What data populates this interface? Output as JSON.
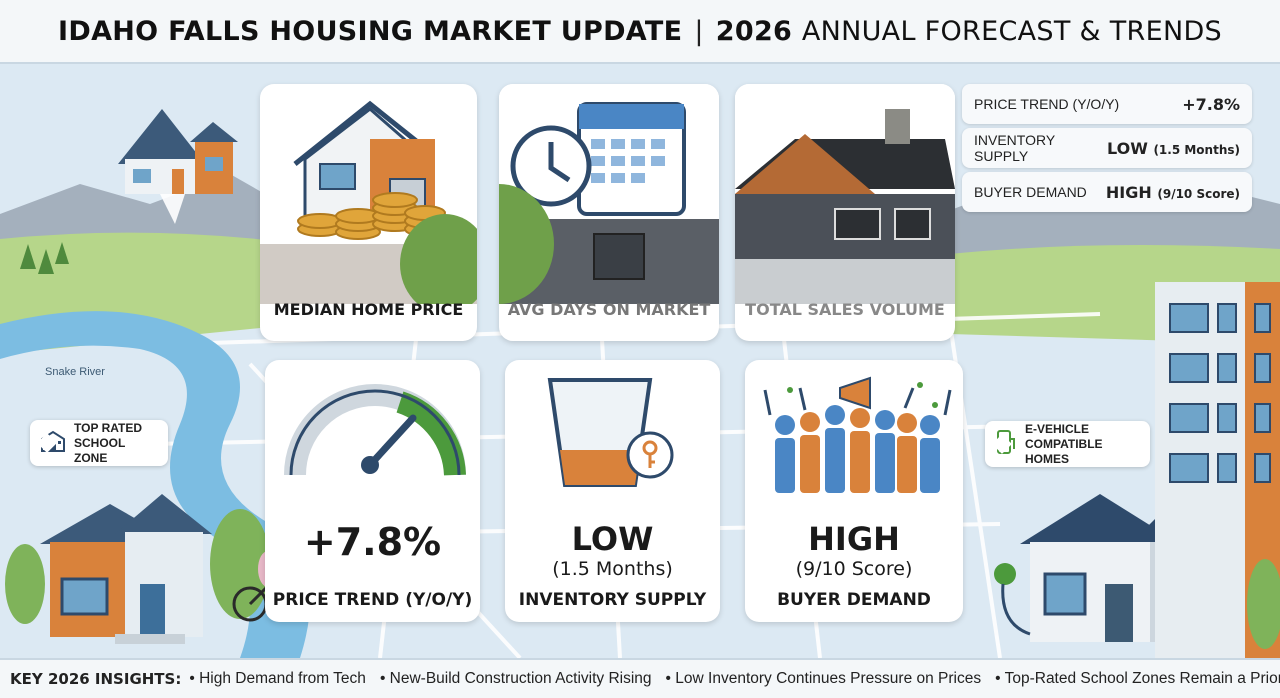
{
  "header": {
    "title_bold": "IDAHO FALLS HOUSING MARKET UPDATE",
    "separator": "|",
    "title_year": "2026",
    "title_light": "ANNUAL FORECAST & TRENDS"
  },
  "top_cards": [
    {
      "label": "MEDIAN HOME PRICE"
    },
    {
      "label": "AVG DAYS ON MARKET"
    },
    {
      "label": "TOTAL SALES VOLUME"
    }
  ],
  "stats": [
    {
      "label": "PRICE TREND (Y/O/Y)",
      "value": "+7.8%",
      "detail": ""
    },
    {
      "label": "INVENTORY SUPPLY",
      "value": "LOW",
      "detail": "(1.5 Months)"
    },
    {
      "label": "BUYER DEMAND",
      "value": "HIGH",
      "detail": "(9/10 Score)"
    }
  ],
  "bottom_cards": [
    {
      "value": "+7.8%",
      "sub": "",
      "label": "PRICE TREND (Y/O/Y)"
    },
    {
      "value": "LOW",
      "sub": "(1.5 Months)",
      "label": "INVENTORY SUPPLY"
    },
    {
      "value": "HIGH",
      "sub": "(9/10 Score)",
      "label": "BUYER DEMAND"
    }
  ],
  "map": {
    "river_label": "Snake River"
  },
  "callouts": {
    "school": {
      "line1": "TOP RATED",
      "line2": "SCHOOL ZONE"
    },
    "ev": {
      "line1": "E-VEHICLE",
      "line2": "COMPATIBLE HOMES"
    }
  },
  "footer": {
    "title": "KEY 2026 INSIGHTS:",
    "items": [
      "High Demand from Tech",
      "New-Build Construction Activity Rising",
      "Low Inventory Continues Pressure on Prices",
      "Top-Rated School Zones Remain a Priority"
    ]
  },
  "colors": {
    "sky": "#d8e8f3",
    "river": "#6fb2d9",
    "grass": "#a9cf7e",
    "mountain": "#9aa7b6",
    "gauge_green": "#4c9a3c",
    "gauge_gray": "#cfd7de",
    "navy": "#2e4a6b",
    "orange": "#d9823b"
  }
}
